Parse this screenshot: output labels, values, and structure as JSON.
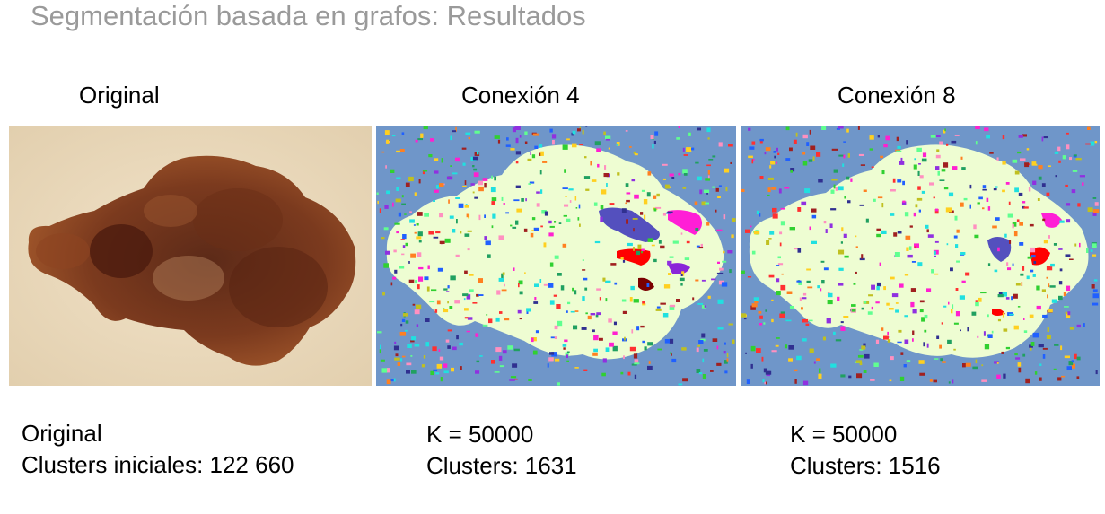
{
  "slide": {
    "title": "Segmentación basada en grafos: Resultados"
  },
  "columns": [
    {
      "heading": "Original",
      "caption_line1": "Original",
      "caption_line2": "Clusters iniciales: 122 660"
    },
    {
      "heading": "Conexión 4",
      "caption_line1": "K = 50000",
      "caption_line2": "Clusters: 1631"
    },
    {
      "heading": "Conexión 8",
      "caption_line1": "K = 50000",
      "caption_line2": "Clusters: 1516"
    }
  ],
  "colors": {
    "segment_background": "#6f96c9",
    "segment_main_region": "#eefdd2",
    "skin": "#ead9bf",
    "lesion_dark": "#5a2412",
    "lesion_mid": "#8d4422"
  }
}
